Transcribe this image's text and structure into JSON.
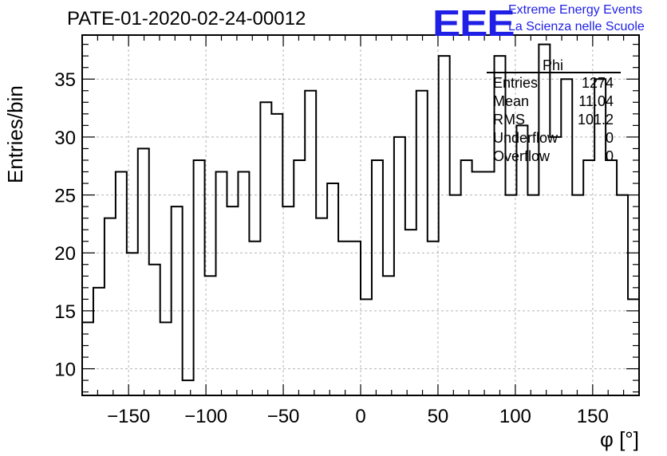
{
  "header": {
    "title": "PATE-01-2020-02-24-00012",
    "logo_text": "EEE",
    "logo_line1": "Extreme Energy Events",
    "logo_line2": "La Scienza nelle Scuole"
  },
  "colors": {
    "logo": "#1f1fe6",
    "histogram": "#000000",
    "grid": "#b4b4b4"
  },
  "stats": {
    "name": "Phi",
    "rows": [
      {
        "label": "Entries",
        "value": "1274"
      },
      {
        "label": "Mean",
        "value": "11.04"
      },
      {
        "label": "RMS",
        "value": "101.2"
      },
      {
        "label": "Underflow",
        "value": "0"
      },
      {
        "label": "Overflow",
        "value": "0"
      }
    ]
  },
  "chart_data": {
    "type": "bar",
    "style": "step-histogram",
    "xlabel": "φ [°]",
    "ylabel": "Entries/bin",
    "xlim": [
      -180,
      180
    ],
    "ylim": [
      7.7,
      38.8
    ],
    "xticks": [
      -150,
      -100,
      -50,
      0,
      50,
      100,
      150
    ],
    "xtick_labels": [
      "−150",
      "−100",
      "−50",
      "0",
      "50",
      "100",
      "150"
    ],
    "yticks": [
      10,
      15,
      20,
      25,
      30,
      35
    ],
    "grid": true,
    "bin_edges_start": -180,
    "bin_width": 7.2,
    "values": [
      14,
      17,
      23,
      27,
      20,
      29,
      19,
      14,
      24,
      9,
      28,
      18,
      27,
      24,
      27,
      21,
      33,
      32,
      24,
      28,
      34,
      23,
      26,
      21,
      21,
      16,
      28,
      18,
      30,
      22,
      34,
      21,
      37,
      25,
      28,
      27,
      27,
      37,
      25,
      31,
      25,
      38,
      30,
      35,
      25,
      28,
      35,
      28,
      25,
      16
    ]
  }
}
